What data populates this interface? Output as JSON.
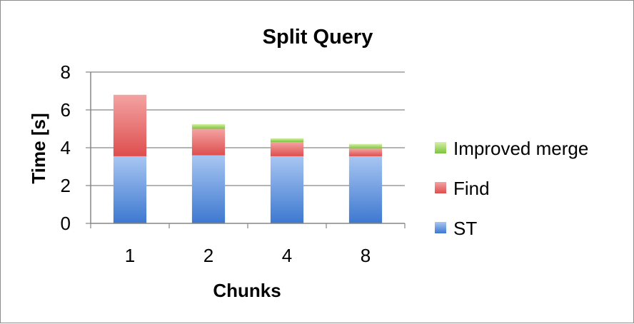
{
  "chart_data": {
    "type": "bar",
    "stacked": true,
    "title": "Split Query",
    "xlabel": "Chunks",
    "ylabel": "Time [s]",
    "categories": [
      "1",
      "2",
      "4",
      "8"
    ],
    "ylim": [
      0,
      8
    ],
    "yticks": [
      "0",
      "2",
      "4",
      "6",
      "8"
    ],
    "grid": true,
    "legend_position": "right",
    "series": [
      {
        "name": "ST",
        "values": [
          3.55,
          3.6,
          3.55,
          3.55
        ],
        "color": "#4f81bd"
      },
      {
        "name": "Find",
        "values": [
          3.25,
          1.4,
          0.75,
          0.4
        ],
        "color": "#e05a5a"
      },
      {
        "name": "Improved merge",
        "values": [
          0.0,
          0.25,
          0.2,
          0.25
        ],
        "color": "#8fd14f"
      }
    ],
    "legend_order": [
      "Improved merge",
      "Find",
      "ST"
    ]
  }
}
